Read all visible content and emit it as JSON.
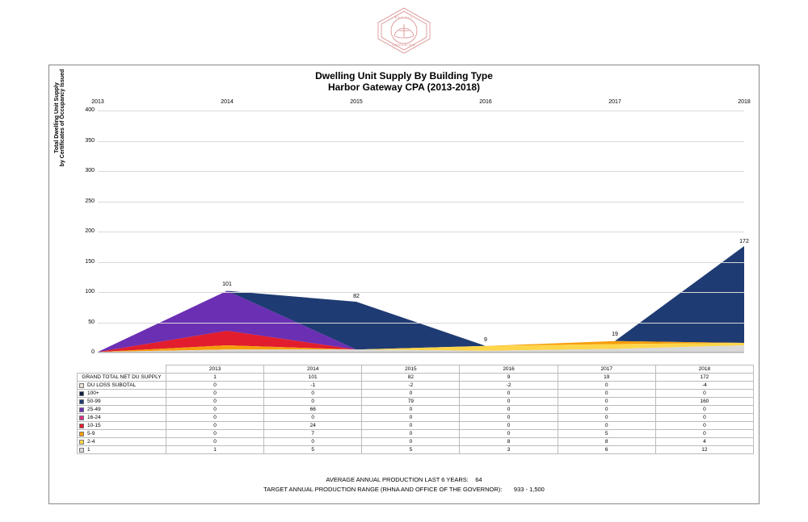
{
  "logo": {
    "color": "#d88a8a",
    "text_top": "PACIFIC",
    "text_bottom": "URBANISM"
  },
  "title": {
    "line1": "Dwelling Unit Supply By Building Type",
    "line2": "Harbor Gateway CPA (2013-2018)"
  },
  "chart": {
    "type": "area-stacked",
    "y_axis_label": "Total Dwelling Unit Supply\nby Certificates of Occupancy Issued",
    "ylim": [
      0,
      400
    ],
    "ytick_step": 50,
    "yticks": [
      0,
      50,
      100,
      150,
      200,
      250,
      300,
      350,
      400
    ],
    "years": [
      "2013",
      "2014",
      "2015",
      "2016",
      "2017",
      "2018"
    ],
    "background_color": "#ffffff",
    "grid_color": "#d9d9d9",
    "tick_fontsize": 7,
    "label_fontsize": 7,
    "point_labels": [
      {
        "year_index": 1,
        "value": 101,
        "text": "101"
      },
      {
        "year_index": 2,
        "value": 82,
        "text": "82"
      },
      {
        "year_index": 3,
        "value": 9,
        "text": "9"
      },
      {
        "year_index": 4,
        "value": 19,
        "text": "19"
      },
      {
        "year_index": 5,
        "value": 172,
        "text": "172"
      }
    ],
    "series": [
      {
        "name": "1",
        "color": "#d9d9d9",
        "values": [
          1,
          5,
          5,
          3,
          6,
          12
        ]
      },
      {
        "name": "2-4",
        "color": "#ffd54a",
        "values": [
          0,
          0,
          0,
          8,
          8,
          4
        ]
      },
      {
        "name": "5-9",
        "color": "#f59e0b",
        "values": [
          0,
          7,
          0,
          0,
          5,
          0
        ]
      },
      {
        "name": "10-15",
        "color": "#e11d2e",
        "values": [
          0,
          24,
          0,
          0,
          0,
          0
        ]
      },
      {
        "name": "16-24",
        "color": "#d63384",
        "values": [
          0,
          0,
          0,
          0,
          0,
          0
        ]
      },
      {
        "name": "25-49",
        "color": "#6b2fb3",
        "values": [
          0,
          66,
          0,
          0,
          0,
          0
        ]
      },
      {
        "name": "50-99",
        "color": "#1f3b73",
        "values": [
          0,
          0,
          79,
          0,
          0,
          160
        ]
      },
      {
        "name": "100+",
        "color": "#0f1e40",
        "values": [
          0,
          0,
          0,
          0,
          0,
          0
        ]
      }
    ],
    "du_loss": {
      "name": "DU LOSS SUBOTAL",
      "color": "#e6e0d8",
      "values": [
        0,
        -1,
        -2,
        -2,
        0,
        -4
      ]
    },
    "grand_total": {
      "name": "GRAND TOTAL NET DU SUPPLY",
      "values": [
        1,
        101,
        82,
        9,
        19,
        172
      ]
    }
  },
  "table": {
    "header_years": [
      "2013",
      "2014",
      "2015",
      "2016",
      "2017",
      "2018"
    ],
    "rows": [
      {
        "label": "GRAND TOTAL NET DU SUPPLY",
        "swatch": null,
        "values": [
          "1",
          "101",
          "82",
          "9",
          "19",
          "172"
        ]
      },
      {
        "label": "DU LOSS SUBOTAL",
        "swatch": "#e6e0d8",
        "values": [
          "0",
          "-1",
          "-2",
          "-2",
          "0",
          "-4"
        ]
      },
      {
        "label": "100+",
        "swatch": "#0f1e40",
        "values": [
          "0",
          "0",
          "0",
          "0",
          "0",
          "0"
        ]
      },
      {
        "label": "50-99",
        "swatch": "#1f3b73",
        "values": [
          "0",
          "0",
          "79",
          "0",
          "0",
          "160"
        ]
      },
      {
        "label": "25-49",
        "swatch": "#6b2fb3",
        "values": [
          "0",
          "66",
          "0",
          "0",
          "0",
          "0"
        ]
      },
      {
        "label": "16-24",
        "swatch": "#d63384",
        "values": [
          "0",
          "0",
          "0",
          "0",
          "0",
          "0"
        ]
      },
      {
        "label": "10-15",
        "swatch": "#e11d2e",
        "values": [
          "0",
          "24",
          "0",
          "0",
          "0",
          "0"
        ]
      },
      {
        "label": "5-9",
        "swatch": "#f59e0b",
        "values": [
          "0",
          "7",
          "0",
          "0",
          "5",
          "0"
        ]
      },
      {
        "label": "2-4",
        "swatch": "#ffd54a",
        "values": [
          "0",
          "0",
          "0",
          "8",
          "8",
          "4"
        ]
      },
      {
        "label": "1",
        "swatch": "#d9d9d9",
        "values": [
          "1",
          "5",
          "5",
          "3",
          "6",
          "12"
        ]
      }
    ]
  },
  "footer": {
    "avg_label": "AVERAGE ANNUAL PRODUCTION LAST 6 YEARS:",
    "avg_value": "64",
    "target_label": "TARGET ANNUAL PRODUCTION RANGE (RHNA AND OFFICE OF THE GOVERNOR):",
    "target_value": "933  -  1,500"
  }
}
